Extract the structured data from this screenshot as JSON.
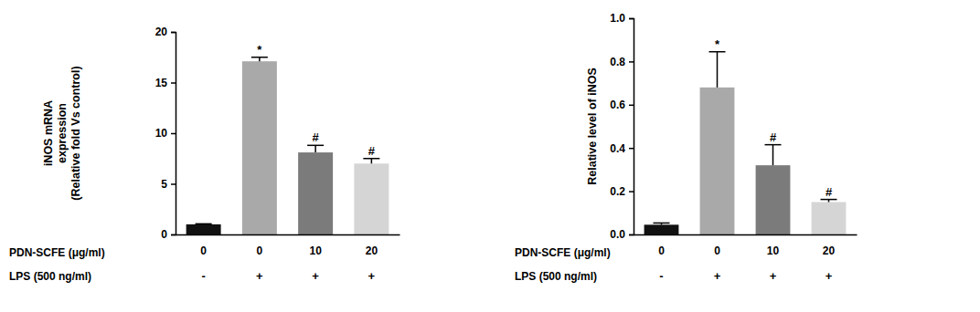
{
  "chart_data": [
    {
      "type": "bar",
      "ylabel": [
        "iNOS mRNA",
        "expression",
        "(Relative fold Vs control)"
      ],
      "xlabel": "PDN-SCFE (μg/ml)",
      "categories": [
        "0",
        "0",
        "10",
        "20"
      ],
      "x_row2": {
        "label": "LPS (500 ng/ml)",
        "labels": [
          "-",
          "+",
          "+",
          "+"
        ]
      },
      "values": [
        1.0,
        17.1,
        8.1,
        7.0
      ],
      "errors": [
        0.05,
        0.4,
        0.7,
        0.5
      ],
      "significance": [
        null,
        "*",
        "#",
        "#"
      ],
      "colors": [
        "#111111",
        "#a9a9a9",
        "#7b7b7b",
        "#d5d5d5"
      ],
      "ylim": [
        0,
        20
      ],
      "yticks": [
        0,
        5,
        10,
        15,
        20
      ]
    },
    {
      "type": "bar",
      "ylabel": [
        "Relative level of iNOS"
      ],
      "xlabel": "PDN-SCFE (μg/ml)",
      "categories": [
        "0",
        "0",
        "10",
        "20"
      ],
      "x_row2": {
        "label": "LPS (500 ng/ml)",
        "labels": [
          "-",
          "+",
          "+",
          "+"
        ]
      },
      "values": [
        0.045,
        0.68,
        0.32,
        0.15
      ],
      "errors": [
        0.008,
        0.165,
        0.095,
        0.012
      ],
      "significance": [
        null,
        "*",
        "#",
        "#"
      ],
      "colors": [
        "#111111",
        "#a9a9a9",
        "#7b7b7b",
        "#d5d5d5"
      ],
      "ylim": [
        0,
        1.0
      ],
      "yticks": [
        {
          "value": 0,
          "label": "0.0"
        },
        {
          "value": 0.2,
          "label": "0.2"
        },
        {
          "value": 0.4,
          "label": "0.4"
        },
        {
          "value": 0.6,
          "label": "0.6"
        },
        {
          "value": 0.8,
          "label": "0.8"
        },
        {
          "value": 1.0,
          "label": "1.0"
        }
      ]
    }
  ]
}
